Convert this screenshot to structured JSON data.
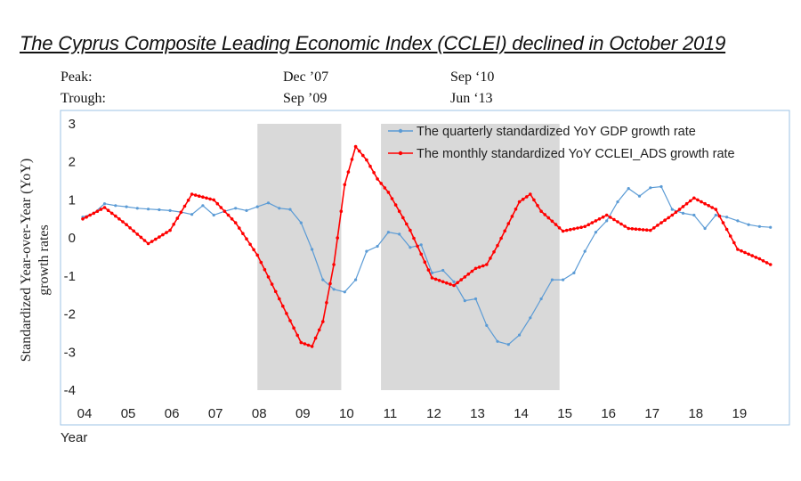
{
  "chart_data": {
    "type": "line",
    "title": "The Cyprus Composite Leading Economic Index (CCLEI) declined in October 2019",
    "business_cycle_dates": {
      "rows": [
        {
          "label": "Peak:",
          "dates": [
            "Dec ’07",
            "Sep ‘10"
          ]
        },
        {
          "label": "Trough:",
          "dates": [
            "Sep ’09",
            "Jun ‘13"
          ]
        }
      ]
    },
    "ylabel": "Standardized Year-over-Year (YoY) growth rates",
    "xlabel": "Year",
    "ylim": [
      -4,
      3
    ],
    "yticks": [
      "3",
      "2",
      "1",
      "0",
      "-1",
      "-2",
      "-3",
      "-4"
    ],
    "xlim": [
      2004,
      2019.92
    ],
    "xticks": [
      "04",
      "05",
      "06",
      "07",
      "08",
      "09",
      "10",
      "11",
      "12",
      "13",
      "14",
      "15",
      "16",
      "17",
      "18",
      "19"
    ],
    "shaded_periods": [
      [
        2008.0,
        2009.92
      ],
      [
        2010.83,
        2014.92
      ]
    ],
    "legend_position": "top-right",
    "series": [
      {
        "name": "The quarterly standardized YoY GDP growth rate",
        "color": "#5b9bd5",
        "frequency": "quarterly",
        "x": [
          2004.0,
          2004.25,
          2004.5,
          2004.75,
          2005.0,
          2005.25,
          2005.5,
          2005.75,
          2006.0,
          2006.25,
          2006.5,
          2006.75,
          2007.0,
          2007.25,
          2007.5,
          2007.75,
          2008.0,
          2008.25,
          2008.5,
          2008.75,
          2009.0,
          2009.25,
          2009.5,
          2009.75,
          2010.0,
          2010.25,
          2010.5,
          2010.75,
          2011.0,
          2011.25,
          2011.5,
          2011.75,
          2012.0,
          2012.25,
          2012.5,
          2012.75,
          2013.0,
          2013.25,
          2013.5,
          2013.75,
          2014.0,
          2014.25,
          2014.5,
          2014.75,
          2015.0,
          2015.25,
          2015.5,
          2015.75,
          2016.0,
          2016.25,
          2016.5,
          2016.75,
          2017.0,
          2017.25,
          2017.5,
          2017.75,
          2018.0,
          2018.25,
          2018.5,
          2018.75,
          2019.0,
          2019.25,
          2019.5,
          2019.75
        ],
        "values": [
          0.55,
          0.65,
          0.9,
          0.85,
          0.82,
          0.78,
          0.76,
          0.74,
          0.72,
          0.68,
          0.62,
          0.85,
          0.6,
          0.7,
          0.78,
          0.72,
          0.82,
          0.92,
          0.78,
          0.75,
          0.4,
          -0.3,
          -1.1,
          -1.35,
          -1.42,
          -1.1,
          -0.35,
          -0.22,
          0.15,
          0.1,
          -0.25,
          -0.18,
          -0.92,
          -0.85,
          -1.15,
          -1.65,
          -1.6,
          -2.3,
          -2.72,
          -2.8,
          -2.55,
          -2.1,
          -1.6,
          -1.1,
          -1.1,
          -0.92,
          -0.35,
          0.15,
          0.45,
          0.95,
          1.3,
          1.1,
          1.32,
          1.35,
          0.75,
          0.65,
          0.6,
          0.25,
          0.6,
          0.55,
          0.45,
          0.35,
          0.3,
          0.28
        ]
      },
      {
        "name": "The monthly standardized YoY CCLEI_ADS growth rate",
        "color": "#ff0000",
        "frequency": "monthly",
        "x": [
          2004.0,
          2004.5,
          2005.0,
          2005.5,
          2006.0,
          2006.5,
          2007.0,
          2007.5,
          2008.0,
          2008.5,
          2009.0,
          2009.25,
          2009.5,
          2009.75,
          2010.0,
          2010.25,
          2010.5,
          2010.75,
          2011.0,
          2011.5,
          2012.0,
          2012.5,
          2013.0,
          2013.25,
          2013.5,
          2014.0,
          2014.25,
          2014.5,
          2015.0,
          2015.5,
          2016.0,
          2016.5,
          2017.0,
          2017.5,
          2018.0,
          2018.5,
          2019.0,
          2019.5,
          2019.75
        ],
        "values": [
          0.5,
          0.8,
          0.35,
          -0.15,
          0.2,
          1.15,
          1.0,
          0.4,
          -0.45,
          -1.6,
          -2.75,
          -2.85,
          -2.2,
          -0.7,
          1.4,
          2.4,
          2.05,
          1.55,
          1.2,
          0.2,
          -1.05,
          -1.25,
          -0.8,
          -0.7,
          -0.2,
          0.95,
          1.15,
          0.7,
          0.18,
          0.3,
          0.6,
          0.25,
          0.2,
          0.6,
          1.05,
          0.75,
          -0.3,
          -0.55,
          -0.7
        ]
      }
    ]
  }
}
